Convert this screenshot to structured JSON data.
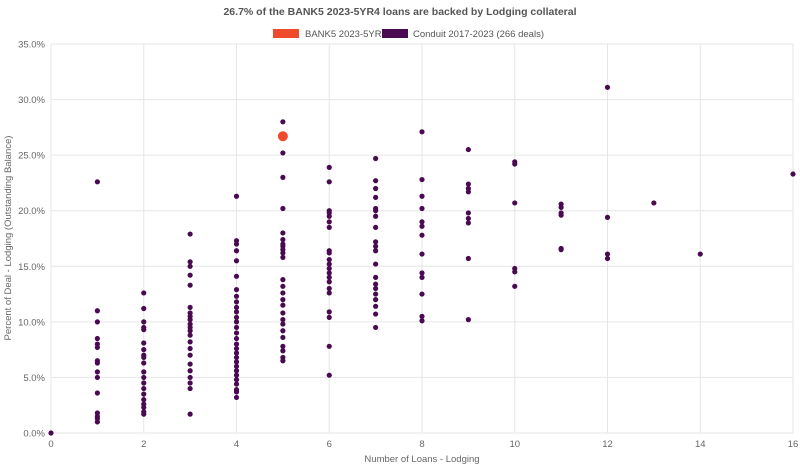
{
  "chart_data": {
    "type": "scatter",
    "title": "26.7% of the BANK5 2023-5YR4 loans are backed by Lodging collateral",
    "xlabel": "Number of Loans - Lodging",
    "ylabel": "Percent of Deal - Lodging (Outstanding Balance)",
    "xlim": [
      0,
      16
    ],
    "ylim": [
      0,
      35
    ],
    "x_ticks": [
      "0",
      "2",
      "4",
      "6",
      "8",
      "10",
      "12",
      "14",
      "16"
    ],
    "y_ticks": [
      "0.0%",
      "5.0%",
      "10.0%",
      "15.0%",
      "20.0%",
      "25.0%",
      "30.0%",
      "35.0%"
    ],
    "grid": true,
    "legend_position": "top-center",
    "series": [
      {
        "name": "BANK5 2023-5YR4",
        "color": "#f04a2d",
        "points": [
          [
            5,
            26.7
          ]
        ]
      },
      {
        "name": "Conduit 2017-2023 (266 deals)",
        "color": "#4a0a52",
        "points": [
          [
            0,
            0.0
          ],
          [
            1,
            22.6
          ],
          [
            1,
            11.0
          ],
          [
            1,
            10.0
          ],
          [
            1,
            8.5
          ],
          [
            1,
            8.0
          ],
          [
            1,
            7.7
          ],
          [
            1,
            6.5
          ],
          [
            1,
            6.3
          ],
          [
            1,
            5.5
          ],
          [
            1,
            5.0
          ],
          [
            1,
            3.6
          ],
          [
            1,
            1.8
          ],
          [
            1,
            1.5
          ],
          [
            1,
            1.3
          ],
          [
            1,
            1.0
          ],
          [
            2,
            12.6
          ],
          [
            2,
            11.2
          ],
          [
            2,
            10.0
          ],
          [
            2,
            9.5
          ],
          [
            2,
            9.3
          ],
          [
            2,
            8.1
          ],
          [
            2,
            7.5
          ],
          [
            2,
            7.0
          ],
          [
            2,
            6.8
          ],
          [
            2,
            6.3
          ],
          [
            2,
            5.5
          ],
          [
            2,
            5.0
          ],
          [
            2,
            4.5
          ],
          [
            2,
            4.0
          ],
          [
            2,
            3.5
          ],
          [
            2,
            3.0
          ],
          [
            2,
            2.6
          ],
          [
            2,
            2.3
          ],
          [
            2,
            1.9
          ],
          [
            2,
            1.7
          ],
          [
            3,
            17.9
          ],
          [
            3,
            15.4
          ],
          [
            3,
            15.0
          ],
          [
            3,
            14.2
          ],
          [
            3,
            13.3
          ],
          [
            3,
            11.3
          ],
          [
            3,
            10.8
          ],
          [
            3,
            10.5
          ],
          [
            3,
            10.2
          ],
          [
            3,
            9.8
          ],
          [
            3,
            9.5
          ],
          [
            3,
            9.2
          ],
          [
            3,
            8.8
          ],
          [
            3,
            8.2
          ],
          [
            3,
            7.6
          ],
          [
            3,
            7.0
          ],
          [
            3,
            6.2
          ],
          [
            3,
            5.6
          ],
          [
            3,
            5.0
          ],
          [
            3,
            4.5
          ],
          [
            3,
            4.0
          ],
          [
            3,
            1.7
          ],
          [
            4,
            21.3
          ],
          [
            4,
            17.3
          ],
          [
            4,
            17.0
          ],
          [
            4,
            16.4
          ],
          [
            4,
            15.5
          ],
          [
            4,
            14.1
          ],
          [
            4,
            12.9
          ],
          [
            4,
            12.3
          ],
          [
            4,
            11.8
          ],
          [
            4,
            11.3
          ],
          [
            4,
            10.9
          ],
          [
            4,
            10.4
          ],
          [
            4,
            10.0
          ],
          [
            4,
            9.5
          ],
          [
            4,
            9.0
          ],
          [
            4,
            8.5
          ],
          [
            4,
            8.0
          ],
          [
            4,
            7.6
          ],
          [
            4,
            7.2
          ],
          [
            4,
            6.8
          ],
          [
            4,
            6.4
          ],
          [
            4,
            6.0
          ],
          [
            4,
            5.6
          ],
          [
            4,
            5.2
          ],
          [
            4,
            4.8
          ],
          [
            4,
            4.4
          ],
          [
            4,
            3.9
          ],
          [
            4,
            3.7
          ],
          [
            4,
            3.2
          ],
          [
            5,
            28.0
          ],
          [
            5,
            25.2
          ],
          [
            5,
            23.0
          ],
          [
            5,
            20.2
          ],
          [
            5,
            18.0
          ],
          [
            5,
            17.4
          ],
          [
            5,
            17.0
          ],
          [
            5,
            16.8
          ],
          [
            5,
            16.5
          ],
          [
            5,
            16.2
          ],
          [
            5,
            15.8
          ],
          [
            5,
            13.8
          ],
          [
            5,
            13.2
          ],
          [
            5,
            12.6
          ],
          [
            5,
            12.0
          ],
          [
            5,
            11.5
          ],
          [
            5,
            10.8
          ],
          [
            5,
            10.2
          ],
          [
            5,
            9.8
          ],
          [
            5,
            9.2
          ],
          [
            5,
            8.6
          ],
          [
            5,
            7.8
          ],
          [
            5,
            7.4
          ],
          [
            5,
            6.8
          ],
          [
            5,
            6.5
          ],
          [
            6,
            23.9
          ],
          [
            6,
            22.6
          ],
          [
            6,
            20.0
          ],
          [
            6,
            19.8
          ],
          [
            6,
            19.5
          ],
          [
            6,
            19.0
          ],
          [
            6,
            18.5
          ],
          [
            6,
            16.4
          ],
          [
            6,
            16.2
          ],
          [
            6,
            15.6
          ],
          [
            6,
            15.2
          ],
          [
            6,
            14.8
          ],
          [
            6,
            14.4
          ],
          [
            6,
            14.0
          ],
          [
            6,
            13.6
          ],
          [
            6,
            13.0
          ],
          [
            6,
            12.6
          ],
          [
            6,
            10.9
          ],
          [
            6,
            10.4
          ],
          [
            6,
            7.8
          ],
          [
            6,
            5.2
          ],
          [
            7,
            24.7
          ],
          [
            7,
            22.7
          ],
          [
            7,
            22.0
          ],
          [
            7,
            21.2
          ],
          [
            7,
            20.2
          ],
          [
            7,
            20.0
          ],
          [
            7,
            19.5
          ],
          [
            7,
            18.5
          ],
          [
            7,
            17.2
          ],
          [
            7,
            16.8
          ],
          [
            7,
            16.4
          ],
          [
            7,
            15.2
          ],
          [
            7,
            14.0
          ],
          [
            7,
            13.4
          ],
          [
            7,
            13.0
          ],
          [
            7,
            12.5
          ],
          [
            7,
            12.0
          ],
          [
            7,
            11.4
          ],
          [
            7,
            10.7
          ],
          [
            7,
            9.5
          ],
          [
            8,
            27.1
          ],
          [
            8,
            22.8
          ],
          [
            8,
            21.3
          ],
          [
            8,
            20.2
          ],
          [
            8,
            19.0
          ],
          [
            8,
            18.6
          ],
          [
            8,
            17.8
          ],
          [
            8,
            16.1
          ],
          [
            8,
            14.4
          ],
          [
            8,
            14.0
          ],
          [
            8,
            12.5
          ],
          [
            8,
            10.5
          ],
          [
            8,
            10.1
          ],
          [
            9,
            25.5
          ],
          [
            9,
            22.4
          ],
          [
            9,
            22.0
          ],
          [
            9,
            21.7
          ],
          [
            9,
            19.8
          ],
          [
            9,
            19.3
          ],
          [
            9,
            18.9
          ],
          [
            9,
            15.7
          ],
          [
            9,
            10.2
          ],
          [
            10,
            24.4
          ],
          [
            10,
            24.2
          ],
          [
            10,
            20.7
          ],
          [
            10,
            14.8
          ],
          [
            10,
            14.5
          ],
          [
            10,
            13.2
          ],
          [
            11,
            20.6
          ],
          [
            11,
            20.3
          ],
          [
            11,
            19.8
          ],
          [
            11,
            19.6
          ],
          [
            11,
            16.6
          ],
          [
            11,
            16.5
          ],
          [
            12,
            31.1
          ],
          [
            12,
            19.4
          ],
          [
            12,
            16.1
          ],
          [
            12,
            15.7
          ],
          [
            13,
            20.7
          ],
          [
            14,
            16.1
          ],
          [
            16,
            23.3
          ]
        ]
      }
    ]
  }
}
